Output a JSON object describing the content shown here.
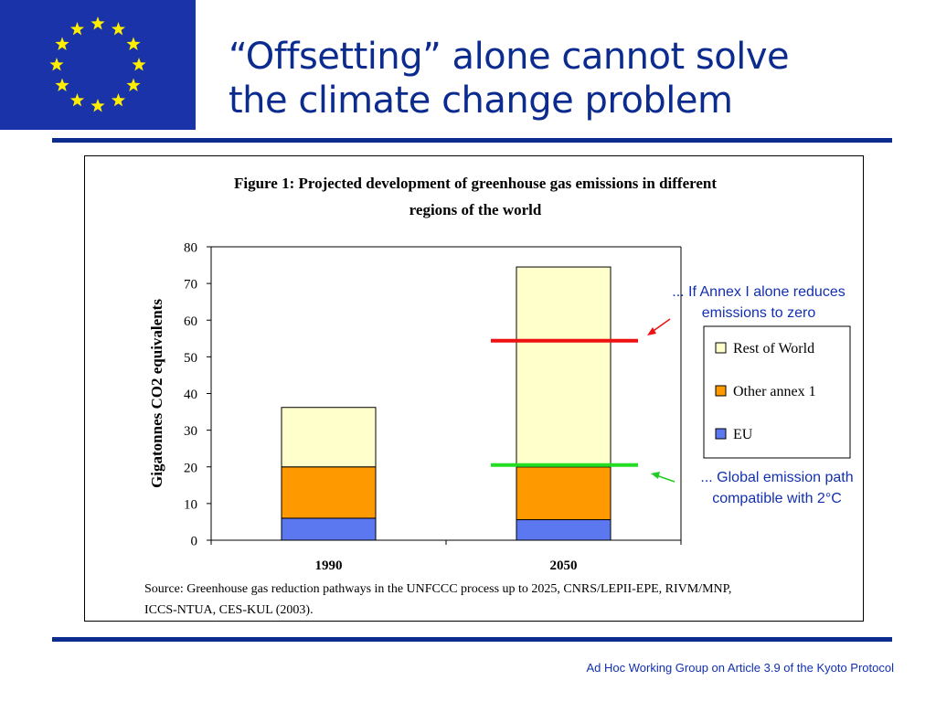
{
  "slide": {
    "title_line1": "“Offsetting” alone cannot solve",
    "title_line2": "the climate change problem",
    "footer": "Ad Hoc Working Group on Article 3.9 of the Kyoto Protocol"
  },
  "figure": {
    "title_line1": "Figure 1: Projected development of greenhouse gas emissions in different",
    "title_line2": "regions of the world",
    "source_line1": "Source: Greenhouse gas reduction pathways in the UNFCCC process up to 2025, CNRS/LEPII-EPE, RIVM/MNP,",
    "source_line2": "ICCS-NTUA, CES-KUL (2003)."
  },
  "annotations": {
    "annex_line1": "... If Annex I alone reduces",
    "annex_line2": "emissions to zero",
    "global_line1": "... Global emission path",
    "global_line2": "compatible with 2°C"
  },
  "chart_data": {
    "type": "bar",
    "stacked": true,
    "title": "Figure 1: Projected development of greenhouse gas emissions in different regions of the world",
    "xlabel": "",
    "ylabel": "Gigatonnes CO2 equivalents",
    "categories": [
      "1990",
      "2050"
    ],
    "ylim": [
      0,
      80
    ],
    "yticks": [
      0,
      10,
      20,
      30,
      40,
      50,
      60,
      70,
      80
    ],
    "series": [
      {
        "name": "EU",
        "values": [
          6,
          5.6
        ],
        "color": "#5b78f0"
      },
      {
        "name": "Other annex 1",
        "values": [
          14,
          14.4
        ],
        "color": "#ff9900"
      },
      {
        "name": "Rest of World",
        "values": [
          16.2,
          54.5
        ],
        "color": "#ffffcc"
      }
    ],
    "legend": {
      "placement": "right",
      "order": [
        "Rest of World",
        "Other annex 1",
        "EU"
      ]
    },
    "reference_lines": [
      {
        "label": "... If Annex I alone reduces emissions to zero",
        "value": 54.4,
        "category": "2050",
        "color": "#ee1111"
      },
      {
        "label": "... Global emission path compatible with 2°C",
        "value": 20.5,
        "category": "2050",
        "color": "#22dd22"
      }
    ],
    "grid": false
  }
}
